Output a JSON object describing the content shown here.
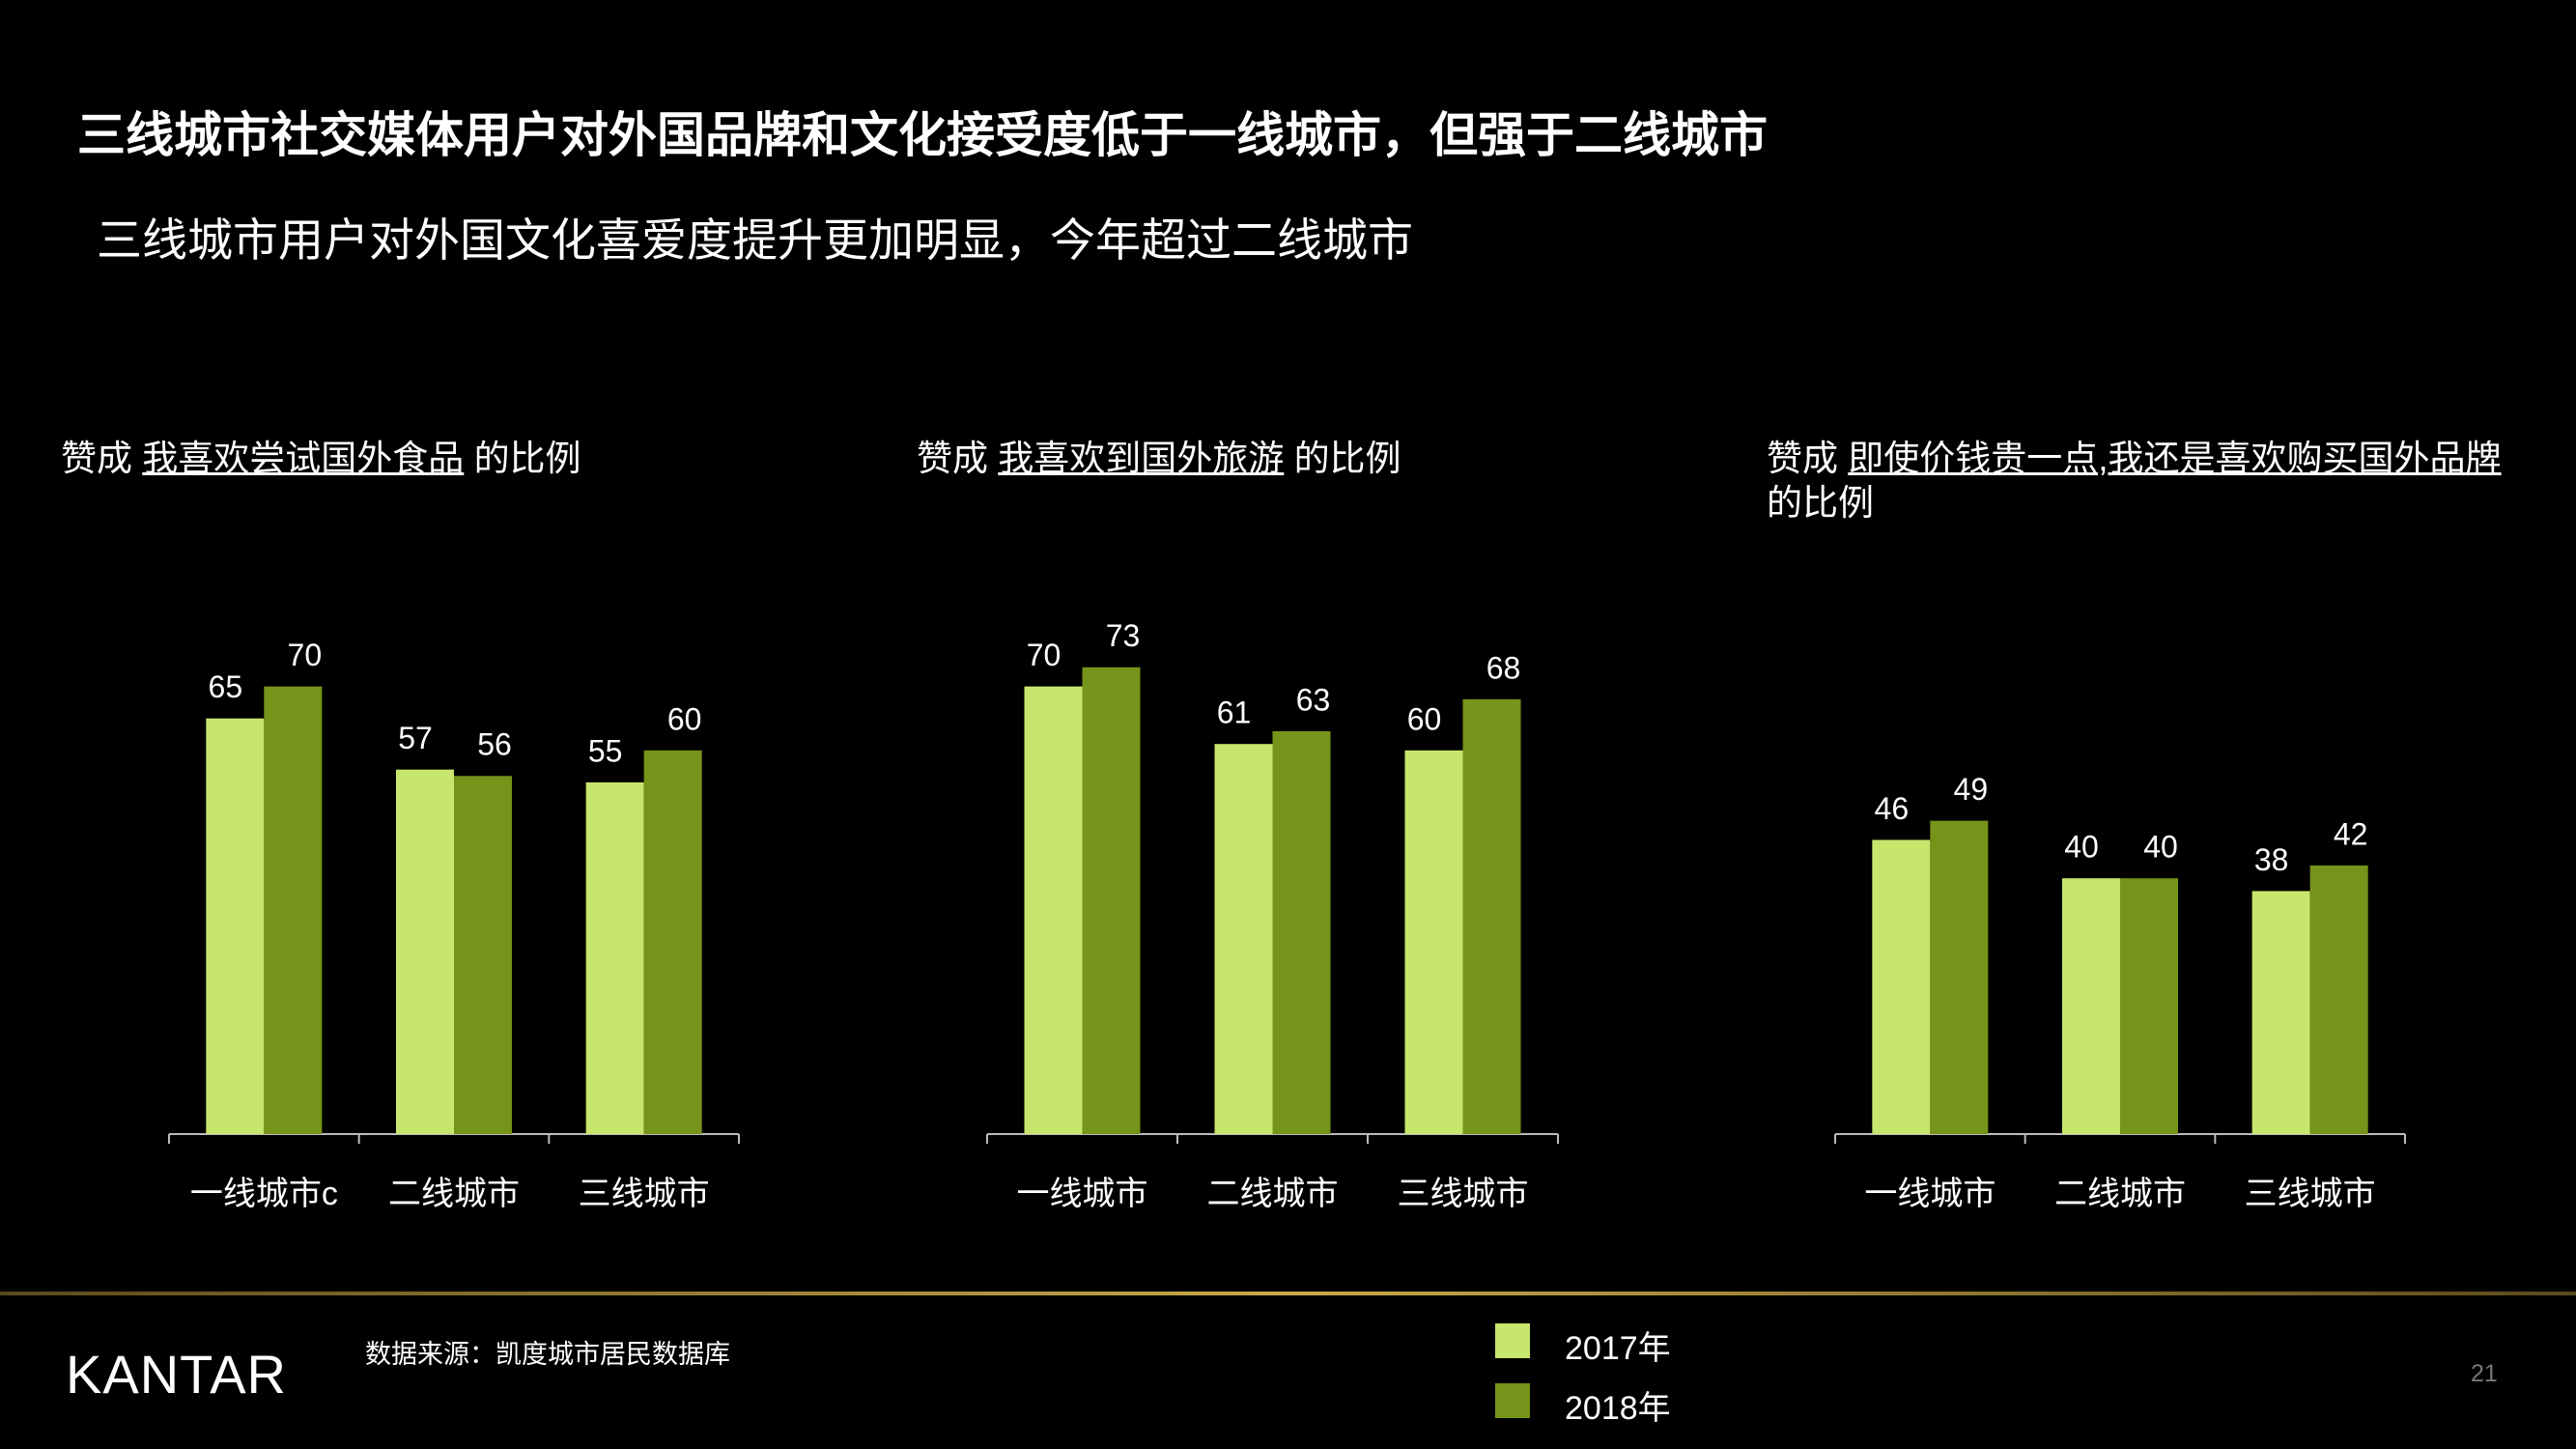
{
  "title": "三线城市社交媒体用户对外国品牌和文化接受度低于一线城市，但强于二线城市",
  "subtitle": "三线城市用户对外国文化喜爱度提升更加明显，今年超过二线城市",
  "chart_data": [
    {
      "type": "bar",
      "title": {
        "lead": "赞成",
        "highlight": "我喜欢尝试国外食品",
        "tail": "的比例"
      },
      "categories": [
        "一线城市c",
        "二线城市",
        "三线城市"
      ],
      "series": [
        {
          "name": "2017年",
          "color": "#c8e66e",
          "values": [
            65,
            57,
            55
          ]
        },
        {
          "name": "2018年",
          "color": "#76931a",
          "values": [
            70,
            56,
            60
          ]
        }
      ]
    },
    {
      "type": "bar",
      "title": {
        "lead": "赞成",
        "highlight": "我喜欢到国外旅游",
        "tail": "的比例"
      },
      "categories": [
        "一线城市",
        "二线城市",
        "三线城市"
      ],
      "series": [
        {
          "name": "2017年",
          "color": "#c8e66e",
          "values": [
            70,
            61,
            60
          ]
        },
        {
          "name": "2018年",
          "color": "#76931a",
          "values": [
            73,
            63,
            68
          ]
        }
      ]
    },
    {
      "type": "bar",
      "title": {
        "lead": "赞成",
        "highlight": "即使价钱贵一点,我还是喜欢购买国外品牌",
        "tail": "的比例"
      },
      "categories": [
        "一线城市",
        "二线城市",
        "三线城市"
      ],
      "series": [
        {
          "name": "2017年",
          "color": "#c8e66e",
          "values": [
            46,
            40,
            38
          ]
        },
        {
          "name": "2018年",
          "color": "#76931a",
          "values": [
            49,
            40,
            42
          ]
        }
      ]
    }
  ],
  "source": "数据来源：凯度城市居民数据库",
  "logo": "KANTAR",
  "page_number": "21"
}
